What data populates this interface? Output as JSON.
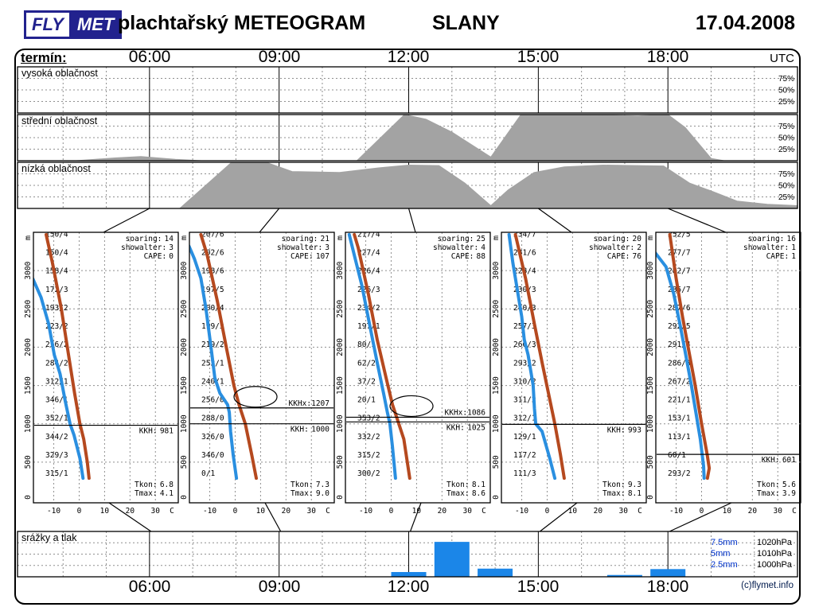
{
  "header": {
    "logo_fly": "FLY",
    "logo_met": "MET",
    "title": "plachtařský METEOGRAM",
    "station": "SLANY",
    "date": "17.04.2008"
  },
  "timeline": {
    "label": "termín:",
    "utc": "UTC",
    "times": [
      "06:00",
      "09:00",
      "12:00",
      "15:00",
      "18:00"
    ],
    "range_hours": [
      3,
      21
    ]
  },
  "footer": {
    "copyright": "(c)flymet.info"
  },
  "colors": {
    "temp": "#b5491f",
    "dew": "#2a8fe0",
    "cloud": "#a3a3a3",
    "bar": "#1b86e8",
    "legend_blue": "#0033cc",
    "logo": "#22228e"
  },
  "sounding_labels": {
    "soaring": "soaring:",
    "showalter": "showalter:",
    "cape": "CAPE:",
    "kkh": "KKH:",
    "kkhx": "KKHx:",
    "tkon": "Tkon:",
    "tmax": "Tmax:",
    "alt_unit": "m",
    "alt_ticks": [
      3000,
      2500,
      2000,
      1500,
      1000,
      500,
      0
    ],
    "temp_unit": "C",
    "temp_ticks": [
      -10,
      0,
      10,
      20,
      30
    ]
  },
  "chart_data": [
    {
      "type": "area",
      "id": "high_clouds",
      "title": "vysoká oblačnost",
      "ylabels": [
        "75%",
        "50%",
        "25%"
      ],
      "x_unit": "hour_utc",
      "y_unit": "percent",
      "points": []
    },
    {
      "type": "area",
      "id": "mid_clouds",
      "title": "střední oblačnost",
      "ylabels": [
        "75%",
        "50%",
        "25%"
      ],
      "x_unit": "hour_utc",
      "y_unit": "percent",
      "points": [
        [
          4.3,
          0
        ],
        [
          5.2,
          6
        ],
        [
          5.8,
          9
        ],
        [
          6.6,
          3
        ],
        [
          7.2,
          0
        ],
        [
          10.8,
          0
        ],
        [
          11.9,
          100
        ],
        [
          12.4,
          90
        ],
        [
          13.0,
          62
        ],
        [
          13.9,
          8
        ],
        [
          14.6,
          100
        ],
        [
          16.0,
          100
        ],
        [
          17.3,
          97
        ],
        [
          18.0,
          100
        ],
        [
          18.4,
          72
        ],
        [
          19.0,
          5
        ],
        [
          19.3,
          0
        ]
      ]
    },
    {
      "type": "area",
      "id": "low_clouds",
      "title": "nízká oblačnost",
      "ylabels": [
        "75%",
        "50%",
        "25%"
      ],
      "x_unit": "hour_utc",
      "y_unit": "percent",
      "points": [
        [
          6.7,
          0
        ],
        [
          7.9,
          100
        ],
        [
          8.7,
          100
        ],
        [
          9.3,
          80
        ],
        [
          10.4,
          78
        ],
        [
          11.3,
          88
        ],
        [
          12.0,
          94
        ],
        [
          12.7,
          93
        ],
        [
          13.3,
          55
        ],
        [
          13.9,
          6
        ],
        [
          14.3,
          40
        ],
        [
          14.9,
          78
        ],
        [
          15.6,
          90
        ],
        [
          16.5,
          94
        ],
        [
          17.9,
          92
        ],
        [
          18.5,
          55
        ],
        [
          19.0,
          38
        ],
        [
          19.6,
          16
        ],
        [
          20.3,
          9
        ],
        [
          21.0,
          6
        ]
      ]
    },
    {
      "type": "sounding",
      "time": "06:00",
      "soaring": 14,
      "showalter": 3,
      "cape": 0,
      "kkh": 981,
      "kkhx": null,
      "cloud_symbol": false,
      "tkon": "6.8",
      "tmax": "4.1",
      "winds": [
        "150/4",
        "150/4",
        "158/4",
        "172/3",
        "193/2",
        "223/2",
        "256/2",
        "284/2",
        "312/1",
        "346/1",
        "352/1",
        "344/2",
        "329/3",
        "315/1"
      ],
      "temp_curve": [
        [
          3.9,
          290
        ],
        [
          3.2,
          500
        ],
        [
          1.8,
          800
        ],
        [
          0.3,
          1000
        ],
        [
          -1.8,
          1400
        ],
        [
          -4.2,
          1900
        ],
        [
          -7.0,
          2500
        ],
        [
          -10.5,
          3100
        ],
        [
          -13.0,
          3470
        ]
      ],
      "dew_curve": [
        [
          1.5,
          290
        ],
        [
          0.3,
          550
        ],
        [
          -2.0,
          850
        ],
        [
          -3.6,
          1000
        ],
        [
          -5.5,
          1300
        ],
        [
          -7.5,
          1650
        ],
        [
          -9.8,
          1900
        ],
        [
          -12.0,
          2300
        ],
        [
          -15.0,
          2650
        ],
        [
          -18.2,
          2890
        ]
      ]
    },
    {
      "type": "sounding",
      "time": "09:00",
      "soaring": 21,
      "showalter": 3,
      "cape": 107,
      "kkh": 1000,
      "kkhx": 1207,
      "cloud_symbol": true,
      "tkon": "7.3",
      "tmax": "9.0",
      "winds": [
        "207/6",
        "202/6",
        "198/6",
        "197/5",
        "200/4",
        "199/3",
        "219/2",
        "252/1",
        "240/1",
        "256/0",
        "288/0",
        "326/0",
        "346/0",
        "0/1"
      ],
      "temp_curve": [
        [
          8.3,
          290
        ],
        [
          6.5,
          600
        ],
        [
          4.0,
          1000
        ],
        [
          1.5,
          1250
        ],
        [
          -0.5,
          1500
        ],
        [
          -3.5,
          2000
        ],
        [
          -7.0,
          2600
        ],
        [
          -11.0,
          3200
        ],
        [
          -13.5,
          3470
        ]
      ],
      "dew_curve": [
        [
          0.5,
          290
        ],
        [
          -0.8,
          600
        ],
        [
          -1.8,
          900
        ],
        [
          -2.3,
          1150
        ],
        [
          -3.0,
          1250
        ],
        [
          -6.0,
          1400
        ],
        [
          -8.0,
          1600
        ],
        [
          -9.5,
          2000
        ],
        [
          -11.5,
          2500
        ],
        [
          -13.5,
          2900
        ],
        [
          -16.0,
          3150
        ],
        [
          -18.2,
          3320
        ]
      ]
    },
    {
      "type": "sounding",
      "time": "12:00",
      "soaring": 25,
      "showalter": 4,
      "cape": 88,
      "kkh": 1025,
      "kkhx": 1086,
      "cloud_symbol": true,
      "tkon": "8.1",
      "tmax": "8.6",
      "winds": [
        "217/4",
        "227/4",
        "226/4",
        "226/3",
        "234/2",
        "197/1",
        "80/1",
        "62/2",
        "37/2",
        "20/1",
        "353/2",
        "332/2",
        "315/2",
        "300/2"
      ],
      "temp_curve": [
        [
          7.3,
          290
        ],
        [
          5.0,
          800
        ],
        [
          2.5,
          1050
        ],
        [
          0.5,
          1250
        ],
        [
          -2.0,
          1600
        ],
        [
          -5.5,
          2100
        ],
        [
          -9.0,
          2700
        ],
        [
          -13.0,
          3300
        ],
        [
          -14.5,
          3470
        ]
      ],
      "dew_curve": [
        [
          1.7,
          290
        ],
        [
          0.5,
          700
        ],
        [
          -0.5,
          1000
        ],
        [
          -1.5,
          1150
        ],
        [
          -3.0,
          1400
        ],
        [
          -5.5,
          1800
        ],
        [
          -8.5,
          2300
        ],
        [
          -11.5,
          2800
        ],
        [
          -14.5,
          3200
        ],
        [
          -16.5,
          3470
        ]
      ]
    },
    {
      "type": "sounding",
      "time": "15:00",
      "soaring": 20,
      "showalter": 2,
      "cape": 76,
      "kkh": 993,
      "kkhx": null,
      "cloud_symbol": false,
      "tkon": "9.3",
      "tmax": "8.1",
      "winds": [
        "234/7",
        "231/6",
        "228/4",
        "230/3",
        "240/3",
        "257/3",
        "266/3",
        "293/2",
        "310/2",
        "311/2",
        "312/1",
        "129/1",
        "117/2",
        "111/3"
      ],
      "temp_curve": [
        [
          6.7,
          290
        ],
        [
          5.2,
          600
        ],
        [
          3.0,
          1000
        ],
        [
          0.5,
          1400
        ],
        [
          -2.0,
          1800
        ],
        [
          -5.0,
          2300
        ],
        [
          -8.5,
          2900
        ],
        [
          -12.5,
          3470
        ]
      ],
      "dew_curve": [
        [
          3.0,
          290
        ],
        [
          1.0,
          550
        ],
        [
          -2.0,
          900
        ],
        [
          -4.5,
          1000
        ],
        [
          -5.0,
          1200
        ],
        [
          -5.5,
          1500
        ],
        [
          -7.5,
          1900
        ],
        [
          -9.0,
          2100
        ],
        [
          -10.0,
          2400
        ],
        [
          -12.5,
          2900
        ],
        [
          -13.5,
          3100
        ],
        [
          -15.0,
          3470
        ]
      ]
    },
    {
      "type": "sounding",
      "time": "18:00",
      "soaring": 16,
      "showalter": 1,
      "cape": 1,
      "kkh": 601,
      "kkhx": null,
      "cloud_symbol": false,
      "tkon": "5.6",
      "tmax": "3.9",
      "winds": [
        "252/5",
        "277/7",
        "282/7",
        "285/7",
        "287/6",
        "292/5",
        "291/4",
        "286/3",
        "267/2",
        "221/1",
        "153/1",
        "113/1",
        "60/1",
        "293/2"
      ],
      "temp_curve": [
        [
          2.3,
          290
        ],
        [
          3.0,
          420
        ],
        [
          2.2,
          600
        ],
        [
          0.0,
          1000
        ],
        [
          -2.5,
          1500
        ],
        [
          -5.0,
          1950
        ],
        [
          -7.5,
          2400
        ],
        [
          -10.0,
          2900
        ],
        [
          -12.5,
          3470
        ]
      ],
      "dew_curve": [
        [
          1.0,
          290
        ],
        [
          0.8,
          450
        ],
        [
          -0.5,
          800
        ],
        [
          -2.0,
          1100
        ],
        [
          -4.0,
          1500
        ],
        [
          -6.5,
          1950
        ],
        [
          -8.5,
          2300
        ],
        [
          -11.0,
          2700
        ],
        [
          -14.0,
          3050
        ],
        [
          -18.2,
          3230
        ]
      ]
    },
    {
      "type": "bar",
      "id": "precip_pressure",
      "title": "srážky a tlak",
      "ylim_mm": [
        0,
        10
      ],
      "gridlines_mm": [
        2.5,
        5,
        7.5
      ],
      "legend": [
        {
          "mm": "7.5mm",
          "hpa": "1020hPa"
        },
        {
          "mm": "5mm",
          "hpa": "1010hPa"
        },
        {
          "mm": "2.5mm",
          "hpa": "1000hPa"
        }
      ],
      "bars": [
        {
          "hour": 12,
          "mm": 1.05
        },
        {
          "hour": 13,
          "mm": 7.7
        },
        {
          "hour": 14,
          "mm": 1.8
        },
        {
          "hour": 17,
          "mm": 0.4
        },
        {
          "hour": 18,
          "mm": 1.7
        }
      ]
    }
  ]
}
